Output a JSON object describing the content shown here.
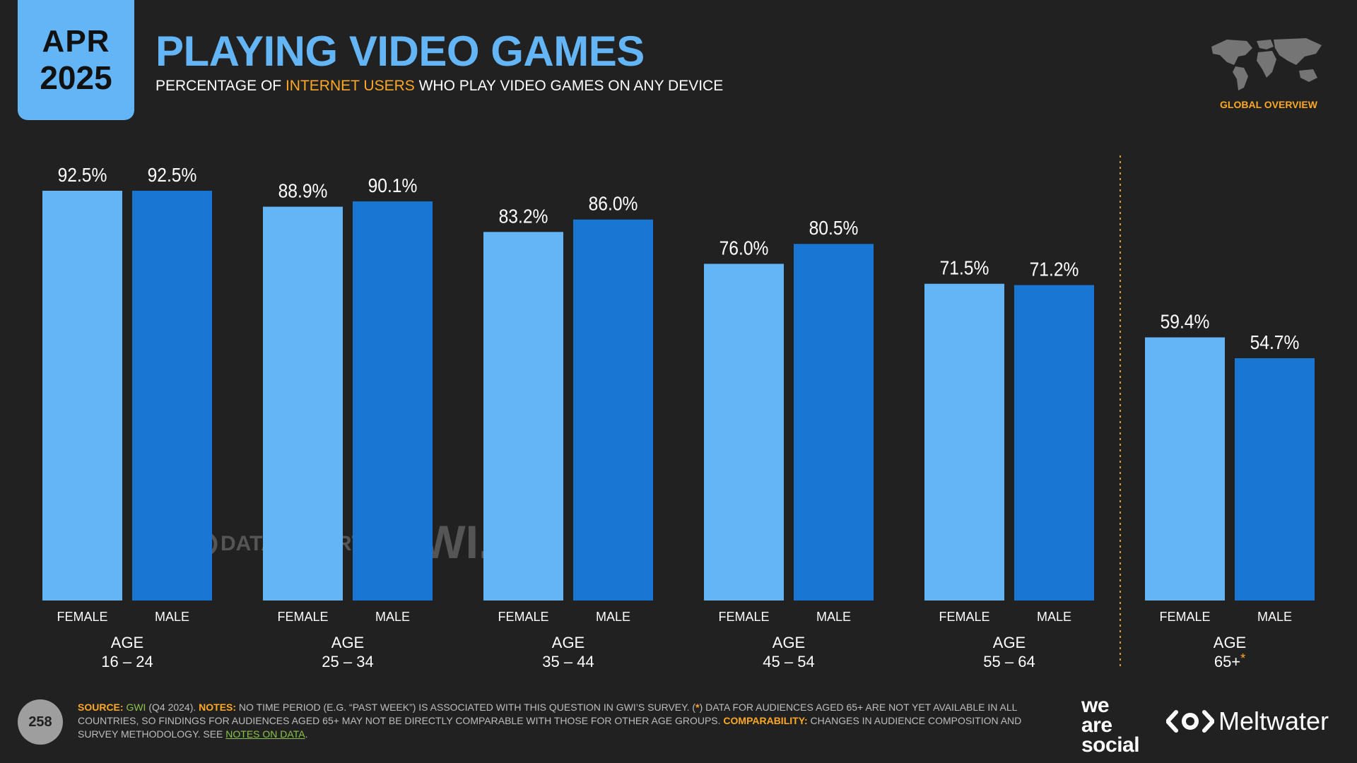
{
  "header": {
    "month": "APR",
    "year": "2025",
    "title": "PLAYING VIDEO GAMES",
    "subtitle_pre": "PERCENTAGE OF ",
    "subtitle_highlight": "INTERNET USERS",
    "subtitle_post": " WHO PLAY VIDEO GAMES ON ANY DEVICE",
    "region_label": "GLOBAL OVERVIEW"
  },
  "watermarks": {
    "datareportal": "DATAREPORTAL",
    "gwi": "GWI."
  },
  "chart_data": {
    "type": "bar",
    "unit": "%",
    "ylim": [
      0,
      100
    ],
    "series_colors": {
      "FEMALE": "#64b5f6",
      "MALE": "#1976d2"
    },
    "groups": [
      {
        "label_top": "AGE",
        "label_bottom": "16 – 24",
        "asterisk": "",
        "bars": [
          {
            "category": "FEMALE",
            "value": 92.5,
            "label": "92.5%"
          },
          {
            "category": "MALE",
            "value": 92.5,
            "label": "92.5%"
          }
        ]
      },
      {
        "label_top": "AGE",
        "label_bottom": "25 – 34",
        "asterisk": "",
        "bars": [
          {
            "category": "FEMALE",
            "value": 88.9,
            "label": "88.9%"
          },
          {
            "category": "MALE",
            "value": 90.1,
            "label": "90.1%"
          }
        ]
      },
      {
        "label_top": "AGE",
        "label_bottom": "35 – 44",
        "asterisk": "",
        "bars": [
          {
            "category": "FEMALE",
            "value": 83.2,
            "label": "83.2%"
          },
          {
            "category": "MALE",
            "value": 86.0,
            "label": "86.0%"
          }
        ]
      },
      {
        "label_top": "AGE",
        "label_bottom": "45 – 54",
        "asterisk": "",
        "bars": [
          {
            "category": "FEMALE",
            "value": 76.0,
            "label": "76.0%"
          },
          {
            "category": "MALE",
            "value": 80.5,
            "label": "80.5%"
          }
        ]
      },
      {
        "label_top": "AGE",
        "label_bottom": "55 – 64",
        "asterisk": "",
        "bars": [
          {
            "category": "FEMALE",
            "value": 71.5,
            "label": "71.5%"
          },
          {
            "category": "MALE",
            "value": 71.2,
            "label": "71.2%"
          }
        ]
      },
      {
        "label_top": "AGE",
        "label_bottom": "65+",
        "asterisk": "*",
        "bars": [
          {
            "category": "FEMALE",
            "value": 59.4,
            "label": "59.4%"
          },
          {
            "category": "MALE",
            "value": 54.7,
            "label": "54.7%"
          }
        ]
      }
    ]
  },
  "footer": {
    "source_key": "SOURCE:",
    "source_name": "GWI",
    "source_rest": " (Q4 2024). ",
    "notes_key": "NOTES:",
    "notes_text": " NO TIME PERIOD (E.G. “PAST WEEK”) IS ASSOCIATED WITH THIS QUESTION IN GWI’S SURVEY. (",
    "notes_asterisk": "*",
    "notes_text2": ") DATA FOR AUDIENCES AGED 65+ ARE NOT YET AVAILABLE IN ALL COUNTRIES, SO FINDINGS FOR AUDIENCES AGED 65+ MAY NOT BE DIRECTLY COMPARABLE WITH THOSE FOR OTHER AGE GROUPS. ",
    "comparability_key": "COMPARABILITY:",
    "comparability_text": " CHANGES IN AUDIENCE COMPOSITION AND SURVEY METHODOLOGY. SEE ",
    "link_text": "NOTES ON DATA",
    "end": "."
  },
  "page_number": "258",
  "brands": {
    "was_line1": "we",
    "was_line2": "are",
    "was_line3": "social",
    "meltwater": "Meltwater"
  },
  "colors": {
    "accent_blue": "#64b5f6",
    "dark_blue": "#1976d2",
    "orange": "#ffa726",
    "green": "#8bc34a",
    "background": "#212121"
  }
}
